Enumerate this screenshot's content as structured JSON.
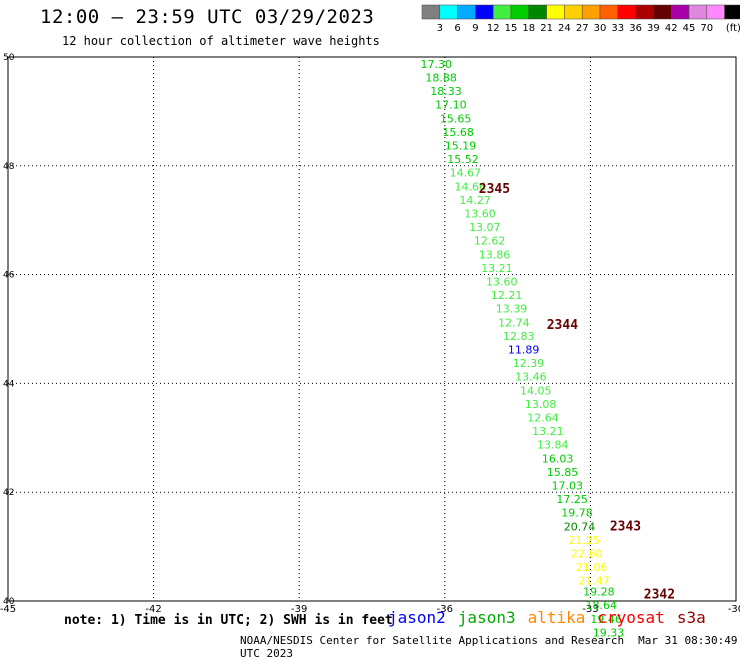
{
  "header": {
    "title": "12:00 – 23:59 UTC 03/29/2023",
    "subtitle": "12 hour collection of altimeter wave heights"
  },
  "legend": {
    "colors": [
      "#808080",
      "#00ffff",
      "#00aaff",
      "#0000ff",
      "#40ee40",
      "#00cc00",
      "#008800",
      "#ffff00",
      "#ffd000",
      "#ffa000",
      "#ff6000",
      "#ff0000",
      "#aa0000",
      "#660000",
      "#aa00aa",
      "#dd88dd",
      "#ff88ff",
      "#000000"
    ],
    "labels": [
      "3",
      "6",
      "9",
      "12",
      "15",
      "18",
      "21",
      "24",
      "27",
      "30",
      "33",
      "36",
      "39",
      "42",
      "45",
      "70",
      "(ft)"
    ]
  },
  "map": {
    "lon_ticks": [
      "-45",
      "-42",
      "-39",
      "-36",
      "-33",
      "-30"
    ],
    "lat_ticks": [
      "50",
      "48",
      "46",
      "44",
      "42",
      "40"
    ],
    "passes": [
      {
        "id": "2345",
        "lon": -35.3,
        "lat": 47.5,
        "color": "#660000"
      },
      {
        "id": "2344",
        "lon": -33.9,
        "lat": 45.0,
        "color": "#660000"
      },
      {
        "id": "2343",
        "lon": -32.6,
        "lat": 41.3,
        "color": "#660000"
      },
      {
        "id": "2342",
        "lon": -31.9,
        "lat": 40.05,
        "color": "#660000"
      }
    ],
    "swh": [
      {
        "v": "17.30",
        "lon": -36.5,
        "lat": 49.8,
        "color": "#00cc00"
      },
      {
        "v": "18.88",
        "lon": -36.4,
        "lat": 49.55,
        "color": "#00cc00"
      },
      {
        "v": "18.33",
        "lon": -36.3,
        "lat": 49.3,
        "color": "#00cc00"
      },
      {
        "v": "17.10",
        "lon": -36.2,
        "lat": 49.05,
        "color": "#00cc00"
      },
      {
        "v": "15.65",
        "lon": -36.1,
        "lat": 48.8,
        "color": "#00cc00"
      },
      {
        "v": "15.68",
        "lon": -36.05,
        "lat": 48.55,
        "color": "#00cc00"
      },
      {
        "v": "15.19",
        "lon": -36.0,
        "lat": 48.3,
        "color": "#00cc00"
      },
      {
        "v": "15.52",
        "lon": -35.95,
        "lat": 48.05,
        "color": "#00cc00"
      },
      {
        "v": "14.67",
        "lon": -35.9,
        "lat": 47.8,
        "color": "#40ee40"
      },
      {
        "v": "14.66",
        "lon": -35.8,
        "lat": 47.55,
        "color": "#40ee40"
      },
      {
        "v": "14.27",
        "lon": -35.7,
        "lat": 47.3,
        "color": "#40ee40"
      },
      {
        "v": "13.60",
        "lon": -35.6,
        "lat": 47.05,
        "color": "#40ee40"
      },
      {
        "v": "13.07",
        "lon": -35.5,
        "lat": 46.8,
        "color": "#40ee40"
      },
      {
        "v": "12.62",
        "lon": -35.4,
        "lat": 46.55,
        "color": "#40ee40"
      },
      {
        "v": "13.86",
        "lon": -35.3,
        "lat": 46.3,
        "color": "#40ee40"
      },
      {
        "v": "13.21",
        "lon": -35.25,
        "lat": 46.05,
        "color": "#40ee40"
      },
      {
        "v": "13.60",
        "lon": -35.15,
        "lat": 45.8,
        "color": "#40ee40"
      },
      {
        "v": "12.21",
        "lon": -35.05,
        "lat": 45.55,
        "color": "#40ee40"
      },
      {
        "v": "13.39",
        "lon": -34.95,
        "lat": 45.3,
        "color": "#40ee40"
      },
      {
        "v": "12.74",
        "lon": -34.9,
        "lat": 45.05,
        "color": "#40ee40"
      },
      {
        "v": "12.83",
        "lon": -34.8,
        "lat": 44.8,
        "color": "#40ee40"
      },
      {
        "v": "11.89",
        "lon": -34.7,
        "lat": 44.55,
        "color": "#0000ff"
      },
      {
        "v": "12.39",
        "lon": -34.6,
        "lat": 44.3,
        "color": "#40ee40"
      },
      {
        "v": "13.46",
        "lon": -34.55,
        "lat": 44.05,
        "color": "#40ee40"
      },
      {
        "v": "14.05",
        "lon": -34.45,
        "lat": 43.8,
        "color": "#40ee40"
      },
      {
        "v": "13.08",
        "lon": -34.35,
        "lat": 43.55,
        "color": "#40ee40"
      },
      {
        "v": "12.64",
        "lon": -34.3,
        "lat": 43.3,
        "color": "#40ee40"
      },
      {
        "v": "13.21",
        "lon": -34.2,
        "lat": 43.05,
        "color": "#40ee40"
      },
      {
        "v": "13.84",
        "lon": -34.1,
        "lat": 42.8,
        "color": "#40ee40"
      },
      {
        "v": "16.03",
        "lon": -34.0,
        "lat": 42.55,
        "color": "#00cc00"
      },
      {
        "v": "15.85",
        "lon": -33.9,
        "lat": 42.3,
        "color": "#00cc00"
      },
      {
        "v": "17.03",
        "lon": -33.8,
        "lat": 42.05,
        "color": "#00cc00"
      },
      {
        "v": "17.25",
        "lon": -33.7,
        "lat": 41.8,
        "color": "#00cc00"
      },
      {
        "v": "19.78",
        "lon": -33.6,
        "lat": 41.55,
        "color": "#00cc00"
      },
      {
        "v": "20.74",
        "lon": -33.55,
        "lat": 41.3,
        "color": "#008800"
      },
      {
        "v": "21.25",
        "lon": -33.45,
        "lat": 41.05,
        "color": "#ffff00"
      },
      {
        "v": "22.60",
        "lon": -33.4,
        "lat": 40.8,
        "color": "#ffff00"
      },
      {
        "v": "21.06",
        "lon": -33.3,
        "lat": 40.55,
        "color": "#ffff00"
      },
      {
        "v": "21.47",
        "lon": -33.25,
        "lat": 40.3,
        "color": "#ffff00"
      },
      {
        "v": "19.28",
        "lon": -33.15,
        "lat": 40.1,
        "color": "#00cc00"
      },
      {
        "v": "18.64",
        "lon": -33.1,
        "lat": 39.85,
        "color": "#00cc00"
      },
      {
        "v": "19.46",
        "lon": -33.0,
        "lat": 39.6,
        "color": "#00cc00"
      },
      {
        "v": "19.33",
        "lon": -32.95,
        "lat": 39.35,
        "color": "#00cc00"
      }
    ]
  },
  "note": "note: 1) Time is in UTC; 2) SWH is in feet",
  "satellites": [
    {
      "name": "jason2",
      "color": "#0000ff"
    },
    {
      "name": "jason3",
      "color": "#00aa00"
    },
    {
      "name": "altika",
      "color": "#ff8800"
    },
    {
      "name": "cryosat",
      "color": "#ff0000"
    },
    {
      "name": "s3a",
      "color": "#990000"
    }
  ],
  "footer": {
    "credit": "NOAA/NESDIS Center for Satellite Applications and Research",
    "timestamp": "Mar 31 08:30:49 UTC 2023"
  }
}
